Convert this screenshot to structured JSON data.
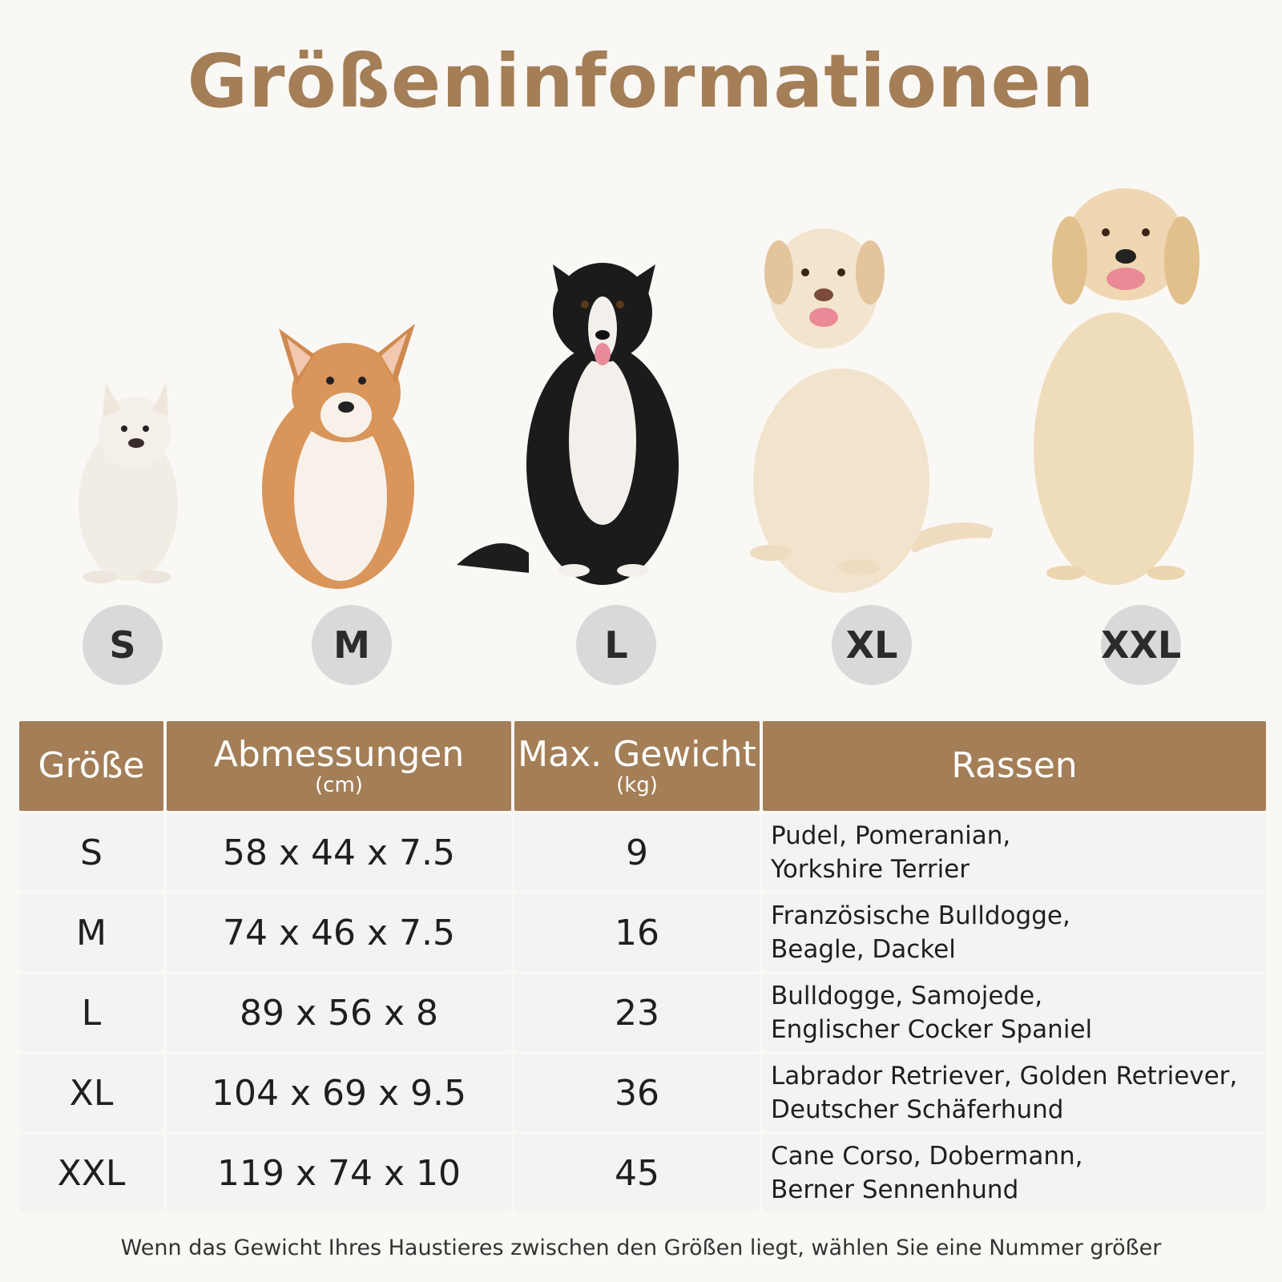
{
  "title": "Größeninformationen",
  "accent_color": "#a37e57",
  "badges": [
    "S",
    "M",
    "L",
    "XL",
    "XXL"
  ],
  "table": {
    "headers": [
      {
        "label": "Größe",
        "unit": ""
      },
      {
        "label": "Abmessungen",
        "unit": "(cm)"
      },
      {
        "label": "Max. Gewicht",
        "unit": "(kg)"
      },
      {
        "label": "Rassen",
        "unit": ""
      }
    ],
    "rows": [
      {
        "size": "S",
        "dims": "58 x 44 x 7.5",
        "weight": "9",
        "breeds": [
          "Pudel, Pomeranian,",
          "Yorkshire Terrier"
        ]
      },
      {
        "size": "M",
        "dims": "74 x 46 x 7.5",
        "weight": "16",
        "breeds": [
          "Französische Bulldogge,",
          "Beagle, Dackel"
        ]
      },
      {
        "size": "L",
        "dims": "89 x 56 x 8",
        "weight": "23",
        "breeds": [
          "Bulldogge, Samojede,",
          "Englischer Cocker Spaniel"
        ]
      },
      {
        "size": "XL",
        "dims": "104 x 69 x 9.5",
        "weight": "36",
        "breeds": [
          "Labrador Retriever, Golden Retriever,",
          "Deutscher Schäferhund"
        ]
      },
      {
        "size": "XXL",
        "dims": "119 x 74 x 10",
        "weight": "45",
        "breeds": [
          "Cane Corso, Dobermann,",
          "Berner Sennenhund"
        ]
      }
    ]
  },
  "note": "Wenn das Gewicht Ihres Haustieres zwischen den Größen liegt, wählen Sie eine Nummer größer"
}
